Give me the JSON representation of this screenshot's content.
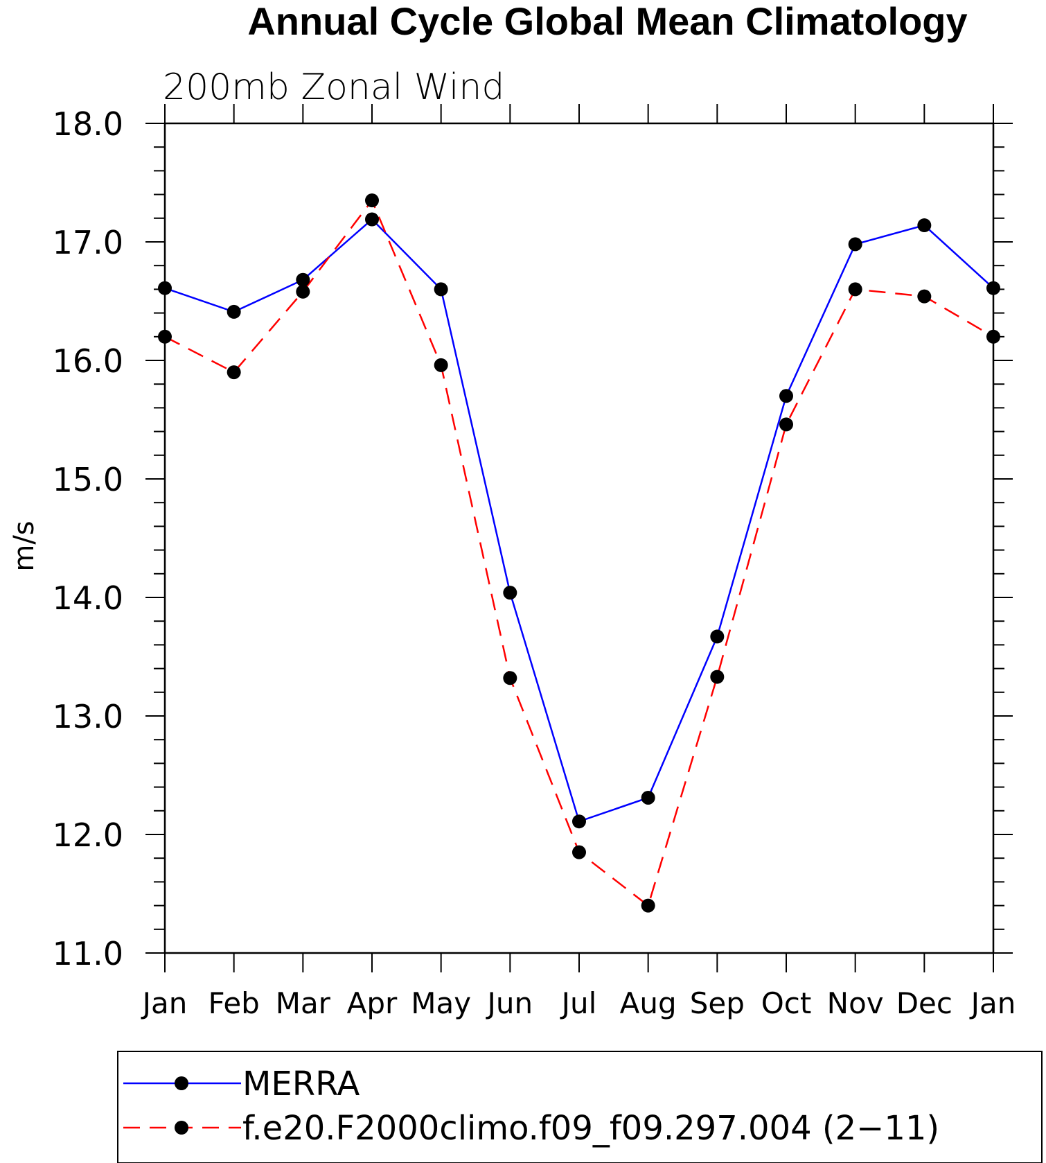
{
  "chart_data": {
    "type": "line",
    "title": "Annual Cycle Global Mean Climatology",
    "subtitle": "200mb Zonal Wind",
    "xlabel": "",
    "ylabel": "m/s",
    "categories": [
      "Jan",
      "Feb",
      "Mar",
      "Apr",
      "May",
      "Jun",
      "Jul",
      "Aug",
      "Sep",
      "Oct",
      "Nov",
      "Dec",
      "Jan"
    ],
    "ylim": [
      11.0,
      18.0
    ],
    "yticks": [
      11.0,
      12.0,
      13.0,
      14.0,
      15.0,
      16.0,
      17.0,
      18.0
    ],
    "ytick_labels": [
      "11.0",
      "12.0",
      "13.0",
      "14.0",
      "15.0",
      "16.0",
      "17.0",
      "18.0"
    ],
    "grid": false,
    "legend_position": "bottom",
    "series": [
      {
        "name": "MERRA",
        "color": "#0000ff",
        "dash": "solid",
        "values": [
          16.61,
          16.41,
          16.68,
          17.19,
          16.6,
          14.04,
          12.11,
          12.31,
          13.67,
          15.7,
          16.98,
          17.14,
          16.61
        ]
      },
      {
        "name": "f.e20.F2000climo.f09_f09.297.004 (2−11)",
        "color": "#ff0000",
        "dash": "dashed",
        "values": [
          16.2,
          15.9,
          16.58,
          17.35,
          15.96,
          13.32,
          11.85,
          11.4,
          13.33,
          15.46,
          16.6,
          16.54,
          16.2
        ]
      }
    ]
  }
}
